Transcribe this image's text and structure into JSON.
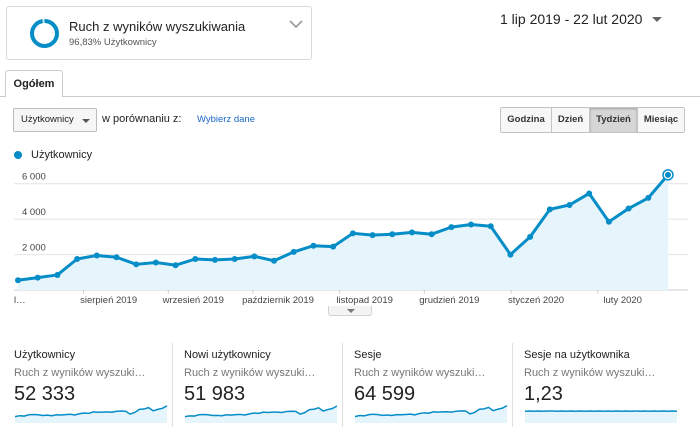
{
  "segment": {
    "title": "Ruch z wyników wyszukiwania",
    "subtitle": "96,83% Użytkownicy",
    "percent": 96.83
  },
  "date_range": {
    "label": "1 lip 2019 - 22 lut 2020"
  },
  "tabs": [
    {
      "label": "Ogółem",
      "active": true
    }
  ],
  "controls": {
    "metric_select": "Użytkownicy",
    "compare_label": "w porównaniu z:",
    "compare_link": "Wybierz dane",
    "periods": [
      {
        "label": "Godzina",
        "active": false
      },
      {
        "label": "Dzień",
        "active": false
      },
      {
        "label": "Tydzień",
        "active": true
      },
      {
        "label": "Miesiąc",
        "active": false
      }
    ]
  },
  "colors": {
    "accent": "#058dc7",
    "area": "#e6f4fb",
    "link": "#1a66c8",
    "grid": "#e4e4e4"
  },
  "chart_data": {
    "type": "area",
    "series": [
      {
        "name": "Użytkownicy",
        "values": [
          550,
          700,
          850,
          1750,
          1950,
          1850,
          1450,
          1550,
          1400,
          1750,
          1700,
          1750,
          1900,
          1650,
          2150,
          2500,
          2450,
          3200,
          3100,
          3150,
          3250,
          3150,
          3550,
          3700,
          3600,
          2000,
          3000,
          4550,
          4800,
          5450,
          3850,
          4600,
          5200,
          6500
        ]
      }
    ],
    "yticks": [
      "6 000",
      "4 000",
      "2 000"
    ],
    "ylim": [
      0,
      7000
    ],
    "xlabels": [
      {
        "label": "l…",
        "index": 0
      },
      {
        "label": "sierpień 2019",
        "index": 4.6
      },
      {
        "label": "wrzesień 2019",
        "index": 8.9
      },
      {
        "label": "październik 2019",
        "index": 13.2
      },
      {
        "label": "listopad 2019",
        "index": 17.6
      },
      {
        "label": "grudzień 2019",
        "index": 21.9
      },
      {
        "label": "styczeń 2020",
        "index": 26.3
      },
      {
        "label": "luty 2020",
        "index": 30.7
      }
    ],
    "grid": true
  },
  "summary_cards": [
    {
      "title": "Użytkownicy",
      "sub": "Ruch z wyników wyszuki…",
      "value": "52 333",
      "spark": [
        3,
        3.5,
        3.3,
        4,
        4.2,
        4,
        3.6,
        3.8,
        3.5,
        4,
        3.9,
        4.1,
        4.3,
        3.9,
        4.6,
        5,
        4.8,
        5.6,
        5.4,
        5.5,
        5.6,
        5.4,
        5.9,
        6.1,
        6,
        4.4,
        5.3,
        7,
        7.2,
        8,
        6.2,
        7,
        7.6,
        9
      ]
    },
    {
      "title": "Nowi użytkownicy",
      "sub": "Ruch z wyników wyszuki…",
      "value": "51 983",
      "spark": [
        3,
        3.4,
        3.3,
        4,
        4.2,
        4,
        3.6,
        3.7,
        3.5,
        4,
        3.8,
        4.1,
        4.2,
        3.9,
        4.5,
        5,
        4.8,
        5.5,
        5.3,
        5.5,
        5.5,
        5.3,
        5.8,
        6,
        5.9,
        4.4,
        5.2,
        6.9,
        7.1,
        7.9,
        6.1,
        6.9,
        7.5,
        8.9
      ]
    },
    {
      "title": "Sesje",
      "sub": "Ruch z wyników wyszuki…",
      "value": "64 599",
      "spark": [
        3,
        3.6,
        3.4,
        4.1,
        4.3,
        4.1,
        3.7,
        3.9,
        3.6,
        4.1,
        4,
        4.2,
        4.4,
        4,
        4.7,
        5.1,
        4.9,
        5.7,
        5.5,
        5.6,
        5.7,
        5.5,
        6,
        6.2,
        6.1,
        4.5,
        5.4,
        7.1,
        7.3,
        8.1,
        6.3,
        7.1,
        7.7,
        9.1
      ]
    },
    {
      "title": "Sesje na użytkownika",
      "sub": "Ruch z wyników wyszuki…",
      "value": "1,23",
      "spark": [
        6,
        6.1,
        6,
        6.1,
        6,
        6.1,
        6.1,
        6,
        6.1,
        6,
        6.1,
        6,
        6.1,
        6,
        6.1,
        6,
        6.1,
        6,
        6.1,
        6,
        6.1,
        6,
        6.1,
        6,
        6.1,
        6,
        6.1,
        6,
        6.1,
        6,
        6.1,
        6,
        6.1,
        6
      ]
    }
  ]
}
